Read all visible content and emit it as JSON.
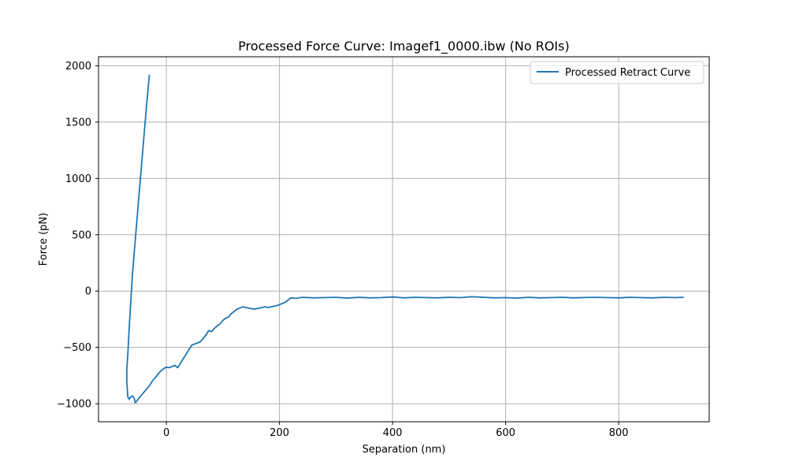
{
  "chart_data": {
    "type": "line",
    "title": "Processed Force Curve: Imagef1_0000.ibw (No ROIs)",
    "xlabel": "Separation (nm)",
    "ylabel": "Force (pN)",
    "xlim": [
      -120,
      960
    ],
    "ylim": [
      -1160,
      2080
    ],
    "xticks": [
      0,
      200,
      400,
      600,
      800
    ],
    "yticks": [
      -1000,
      -500,
      0,
      500,
      1000,
      1500,
      2000
    ],
    "grid": true,
    "legend_position": "top-right",
    "line_color": "#1f77b4",
    "series": [
      {
        "name": "Processed Retract Curve",
        "x": [
          -30,
          -35,
          -40,
          -45,
          -50,
          -55,
          -60,
          -63,
          -66,
          -68,
          -70,
          -70,
          -69,
          -68,
          -66,
          -63,
          -60,
          -57,
          -55,
          -52,
          -50,
          -45,
          -40,
          -35,
          -30,
          -25,
          -20,
          -15,
          -10,
          -5,
          0,
          5,
          10,
          15,
          20,
          25,
          30,
          35,
          40,
          45,
          50,
          55,
          60,
          65,
          70,
          75,
          80,
          85,
          90,
          95,
          100,
          105,
          110,
          115,
          120,
          125,
          130,
          135,
          140,
          145,
          150,
          155,
          160,
          165,
          170,
          175,
          180,
          185,
          190,
          195,
          200,
          205,
          210,
          215,
          220,
          230,
          240,
          260,
          280,
          300,
          320,
          340,
          360,
          380,
          400,
          420,
          440,
          460,
          480,
          500,
          520,
          540,
          560,
          580,
          600,
          620,
          640,
          660,
          680,
          700,
          720,
          740,
          760,
          780,
          800,
          820,
          840,
          860,
          880,
          900,
          915
        ],
        "y": [
          1920,
          1650,
          1350,
          1050,
          750,
          450,
          150,
          -100,
          -350,
          -550,
          -700,
          -800,
          -880,
          -940,
          -960,
          -940,
          -930,
          -950,
          -990,
          -975,
          -960,
          -930,
          -900,
          -870,
          -840,
          -800,
          -770,
          -740,
          -710,
          -690,
          -675,
          -680,
          -670,
          -660,
          -680,
          -640,
          -600,
          -560,
          -520,
          -480,
          -470,
          -460,
          -450,
          -420,
          -390,
          -350,
          -360,
          -330,
          -310,
          -290,
          -260,
          -240,
          -230,
          -200,
          -180,
          -160,
          -150,
          -140,
          -145,
          -150,
          -155,
          -160,
          -155,
          -150,
          -145,
          -140,
          -145,
          -140,
          -135,
          -130,
          -120,
          -110,
          -100,
          -80,
          -60,
          -65,
          -55,
          -60,
          -58,
          -55,
          -62,
          -55,
          -60,
          -58,
          -52,
          -60,
          -55,
          -58,
          -60,
          -55,
          -58,
          -50,
          -55,
          -60,
          -58,
          -62,
          -55,
          -60,
          -58,
          -55,
          -60,
          -57,
          -55,
          -58,
          -60,
          -55,
          -58,
          -60,
          -55,
          -58,
          -55
        ]
      }
    ]
  }
}
